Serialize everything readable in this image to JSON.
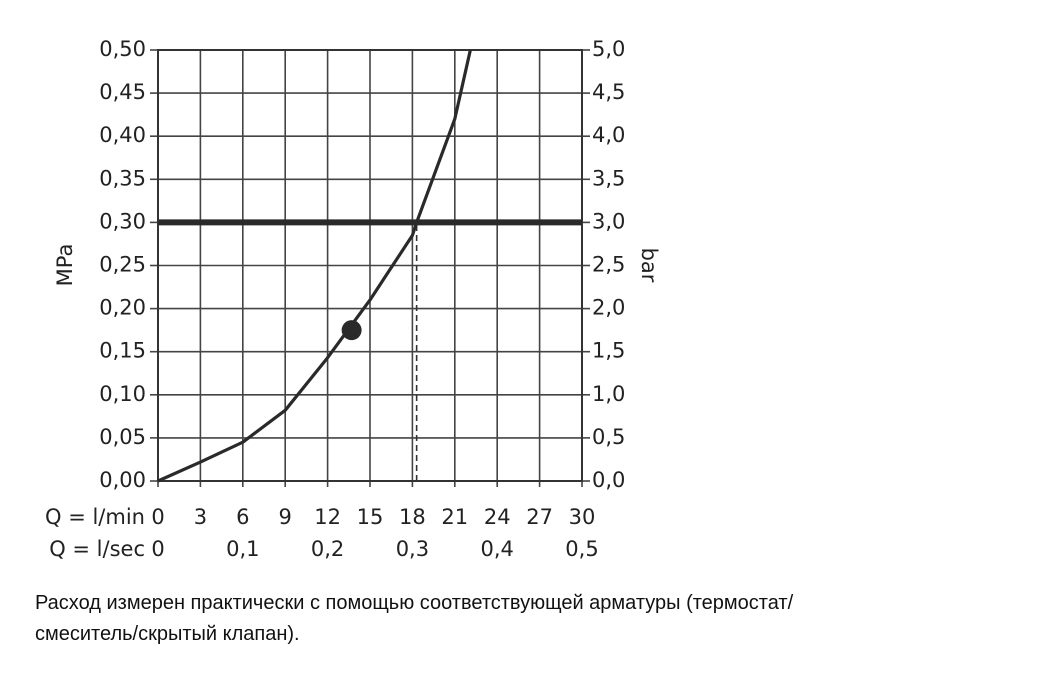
{
  "chart_data": {
    "type": "line",
    "y_label": "MPa",
    "y2_label": "bar",
    "x_label": "Q = l/min",
    "x2_label": "Q = l/sec",
    "x": [
      0,
      3,
      6,
      9,
      12,
      15,
      18,
      18.3,
      21,
      22.1
    ],
    "values": [
      0,
      0.022,
      0.045,
      0.082,
      0.143,
      0.21,
      0.285,
      0.3,
      0.42,
      0.5
    ],
    "color": "#2a2a2a",
    "hline": 0.3,
    "vline": 18.3,
    "marker": {
      "x": 13.7,
      "y": 0.175
    },
    "xlim": [
      0,
      30
    ],
    "xticks": [
      0,
      3,
      6,
      9,
      12,
      15,
      18,
      21,
      24,
      27,
      30
    ],
    "x2lim": [
      0,
      0.5
    ],
    "x2ticks": [
      0,
      {
        "value": 0.1,
        "label": "0,1"
      },
      {
        "value": 0.2,
        "label": "0,2"
      },
      {
        "value": 0.3,
        "label": "0,3"
      },
      {
        "value": 0.4,
        "label": "0,4"
      },
      {
        "value": 0.5,
        "label": "0,5"
      }
    ],
    "ylim": [
      0,
      0.5
    ],
    "yticks": [
      {
        "value": 0,
        "label": "0,00"
      },
      {
        "value": 0.05,
        "label": "0,05"
      },
      {
        "value": 0.1,
        "label": "0,10"
      },
      {
        "value": 0.15,
        "label": "0,15"
      },
      {
        "value": 0.2,
        "label": "0,20"
      },
      {
        "value": 0.25,
        "label": "0,25"
      },
      {
        "value": 0.3,
        "label": "0,30"
      },
      {
        "value": 0.35,
        "label": "0,35"
      },
      {
        "value": 0.4,
        "label": "0,40"
      },
      {
        "value": 0.45,
        "label": "0,45"
      },
      {
        "value": 0.5,
        "label": "0,50"
      }
    ],
    "y2lim": [
      0,
      5
    ],
    "y2ticks": [
      {
        "value": 0,
        "label": "0,0"
      },
      {
        "value": 0.5,
        "label": "0,5"
      },
      {
        "value": 1,
        "label": "1,0"
      },
      {
        "value": 1.5,
        "label": "1,5"
      },
      {
        "value": 2,
        "label": "2,0"
      },
      {
        "value": 2.5,
        "label": "2,5"
      },
      {
        "value": 3,
        "label": "3,0"
      },
      {
        "value": 3.5,
        "label": "3,5"
      },
      {
        "value": 4,
        "label": "4,0"
      },
      {
        "value": 4.5,
        "label": "4,5"
      },
      {
        "value": 5,
        "label": "5,0"
      }
    ],
    "grid": true
  },
  "caption": [
    "Расход измерен практически с помощью соответствующей арматуры (термостат/",
    "смеситель/скрытый клапан)."
  ]
}
